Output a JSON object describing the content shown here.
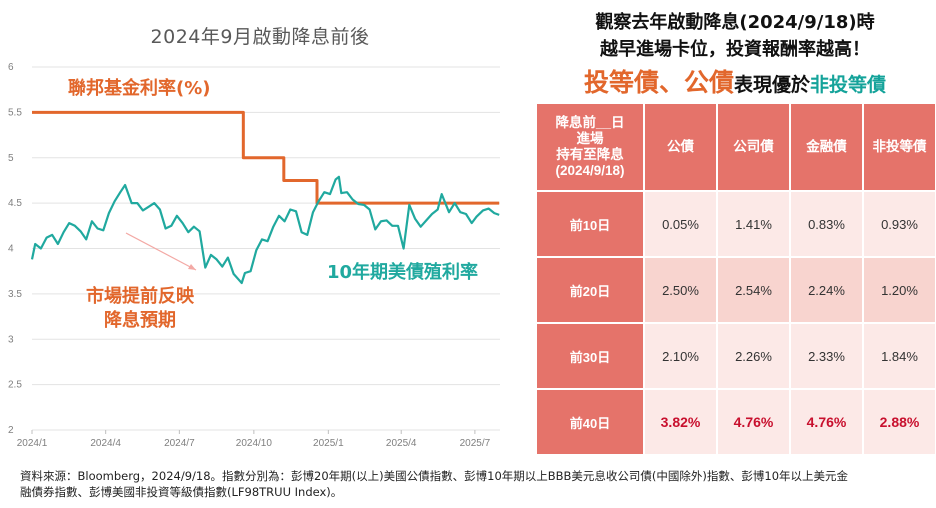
{
  "chart_data": {
    "type": "line",
    "title": "2024年9月啟動降息前後",
    "x_ticks": [
      "2024/1",
      "2024/4",
      "2024/7",
      "2024/10",
      "2025/1",
      "2025/4",
      "2025/7"
    ],
    "ylim": [
      2,
      6
    ],
    "y_ticks": [
      "2",
      "2.5",
      "3",
      "3.5",
      "4",
      "4.5",
      "5",
      "5.5",
      "6"
    ],
    "grid": "horizontal",
    "series": [
      {
        "name": "聯邦基金利率(%)",
        "color": "#e2672c",
        "x": [
          "2024/1/1",
          "2024/9/18",
          "2024/11/7",
          "2024/12/18",
          "2025/7/31"
        ],
        "y": [
          5.5,
          5.0,
          4.75,
          4.5,
          4.5
        ],
        "shape": "step"
      },
      {
        "name": "10年期美債殖利率",
        "color": "#20a99f",
        "x": [
          "2024/1/1",
          "2024/1/5",
          "2024/1/12",
          "2024/1/19",
          "2024/1/26",
          "2024/2/2",
          "2024/2/9",
          "2024/2/16",
          "2024/2/23",
          "2024/3/1",
          "2024/3/8",
          "2024/3/15",
          "2024/3/22",
          "2024/3/29",
          "2024/4/5",
          "2024/4/12",
          "2024/4/19",
          "2024/4/25",
          "2024/5/3",
          "2024/5/10",
          "2024/5/17",
          "2024/5/24",
          "2024/5/31",
          "2024/6/7",
          "2024/6/14",
          "2024/6/21",
          "2024/6/28",
          "2024/7/5",
          "2024/7/12",
          "2024/7/19",
          "2024/7/26",
          "2024/8/2",
          "2024/8/9",
          "2024/8/16",
          "2024/8/23",
          "2024/8/30",
          "2024/9/6",
          "2024/9/13",
          "2024/9/16",
          "2024/9/20",
          "2024/9/27",
          "2024/10/4",
          "2024/10/11",
          "2024/10/18",
          "2024/10/25",
          "2024/11/1",
          "2024/11/8",
          "2024/11/15",
          "2024/11/22",
          "2024/11/29",
          "2024/12/6",
          "2024/12/13",
          "2024/12/20",
          "2024/12/27",
          "2025/1/3",
          "2025/1/10",
          "2025/1/14",
          "2025/1/17",
          "2025/1/24",
          "2025/1/31",
          "2025/2/7",
          "2025/2/14",
          "2025/2/21",
          "2025/2/28",
          "2025/3/7",
          "2025/3/14",
          "2025/3/21",
          "2025/3/28",
          "2025/4/4",
          "2025/4/11",
          "2025/4/18",
          "2025/4/25",
          "2025/5/2",
          "2025/5/9",
          "2025/5/16",
          "2025/5/21",
          "2025/5/30",
          "2025/6/6",
          "2025/6/13",
          "2025/6/20",
          "2025/6/27",
          "2025/7/3",
          "2025/7/11",
          "2025/7/18",
          "2025/7/25",
          "2025/7/31"
        ],
        "y": [
          3.88,
          4.05,
          4.0,
          4.12,
          4.15,
          4.05,
          4.18,
          4.28,
          4.25,
          4.19,
          4.1,
          4.3,
          4.22,
          4.2,
          4.39,
          4.52,
          4.62,
          4.7,
          4.5,
          4.5,
          4.42,
          4.46,
          4.5,
          4.43,
          4.22,
          4.25,
          4.36,
          4.28,
          4.18,
          4.24,
          4.19,
          3.79,
          3.93,
          3.88,
          3.8,
          3.9,
          3.72,
          3.65,
          3.62,
          3.73,
          3.75,
          3.98,
          4.1,
          4.08,
          4.24,
          4.36,
          4.3,
          4.43,
          4.41,
          4.18,
          4.15,
          4.4,
          4.52,
          4.62,
          4.6,
          4.76,
          4.79,
          4.61,
          4.62,
          4.54,
          4.49,
          4.48,
          4.43,
          4.21,
          4.3,
          4.31,
          4.25,
          4.25,
          4.0,
          4.48,
          4.33,
          4.24,
          4.31,
          4.38,
          4.43,
          4.6,
          4.4,
          4.5,
          4.4,
          4.38,
          4.28,
          4.35,
          4.42,
          4.44,
          4.39,
          4.37
        ]
      }
    ],
    "annotations": {
      "fed_label": "聯邦基金利率(%)",
      "ust_label": "10年期美債殖利率",
      "market_label_line1": "市場提前反映",
      "market_label_line2": "降息預期"
    }
  },
  "panel": {
    "heading_line1": "觀察去年啟動降息(2024/9/18)時",
    "heading_line2": "越早進場卡位，投資報酬率越高！",
    "heading3_part1": "投等債、公債",
    "heading3_part2": "表現優於",
    "heading3_part3": "非投等債",
    "accent": "#e2672c",
    "teal": "#14a39a"
  },
  "table": {
    "corner_line1": "降息前__日",
    "corner_line2": "進場",
    "corner_line3": "持有至降息",
    "corner_line4": "(2024/9/18)",
    "columns": [
      "公債",
      "公司債",
      "金融債",
      "非投等債"
    ],
    "rows": [
      {
        "label": "前10日",
        "values": [
          "0.05%",
          "1.41%",
          "0.83%",
          "0.93%"
        ]
      },
      {
        "label": "前20日",
        "values": [
          "2.50%",
          "2.54%",
          "2.24%",
          "1.20%"
        ]
      },
      {
        "label": "前30日",
        "values": [
          "2.10%",
          "2.26%",
          "2.33%",
          "1.84%"
        ]
      },
      {
        "label": "前40日",
        "values": [
          "3.82%",
          "4.76%",
          "4.76%",
          "2.88%"
        ]
      }
    ]
  },
  "footer": {
    "source_line1": "資料來源：Bloomberg，2024/9/18。指數分別為：彭博20年期(以上)美國公債指數、彭博10年期以上BBB美元息收公司債(中國除外)指數、彭博10年以上美元金",
    "source_line2": "融債券指數、彭博美國非投資等級債指數(LF98TRUU Index)。"
  }
}
